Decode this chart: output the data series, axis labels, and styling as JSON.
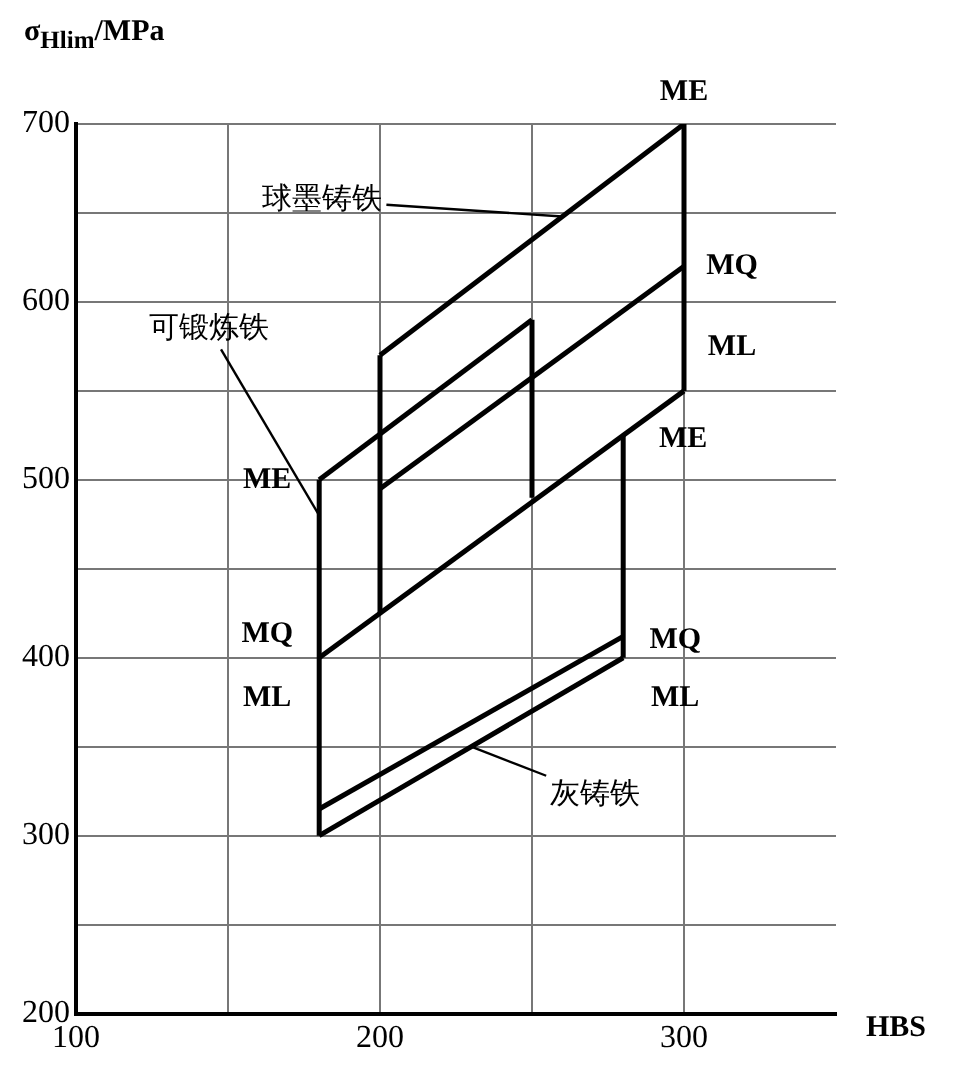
{
  "chart_data": {
    "type": "line",
    "xlabel": "HBS",
    "ylabel": "σ$_{Hlim}$/MPa",
    "xlim": [
      100,
      350
    ],
    "xticks": [
      100,
      {
        "value": 150,
        "label": null
      },
      200,
      {
        "value": 250,
        "label": null
      },
      300
    ],
    "ylim": [
      200,
      700
    ],
    "yticks": [
      200,
      {
        "value": 250,
        "label": null
      },
      300,
      {
        "value": 350,
        "label": null
      },
      400,
      {
        "value": 450,
        "label": null
      },
      500,
      {
        "value": 550,
        "label": null
      },
      600,
      {
        "value": 650,
        "label": null
      },
      700
    ],
    "grid": true,
    "legend": false,
    "marker": "none",
    "line_style": "solid",
    "series": [
      {
        "color": "#000000",
        "x": [
          180,
          280
        ],
        "values": [
          300,
          400
        ]
      },
      {
        "color": "#000000",
        "x": [
          180,
          280
        ],
        "values": [
          315,
          412
        ]
      },
      {
        "color": "#000000",
        "x": [
          180,
          180
        ],
        "values": [
          300,
          500
        ]
      },
      {
        "color": "#000000",
        "x": [
          280,
          280
        ],
        "values": [
          400,
          525
        ]
      },
      {
        "color": "#000000",
        "x": [
          180,
          250
        ],
        "values": [
          500,
          590
        ]
      },
      {
        "color": "#000000",
        "x": [
          250,
          250
        ],
        "values": [
          490,
          590
        ]
      },
      {
        "color": "#000000",
        "x": [
          200,
          300
        ],
        "values": [
          570,
          700
        ]
      },
      {
        "color": "#000000",
        "x": [
          200,
          300
        ],
        "values": [
          495,
          620
        ]
      },
      {
        "color": "#000000",
        "x": [
          180,
          300
        ],
        "values": [
          400,
          550
        ]
      },
      {
        "color": "#000000",
        "x": [
          300,
          300
        ],
        "values": [
          550,
          700
        ]
      },
      {
        "color": "#000000",
        "x": [
          200,
          200
        ],
        "values": [
          425,
          570
        ]
      }
    ],
    "annotations": [
      {
        "text": "ME",
        "x": 300,
        "y": 700
      },
      {
        "text": "MQ",
        "x": 300,
        "y": 620
      },
      {
        "text": "ML",
        "x": 300,
        "y": 550
      },
      {
        "text": "ME",
        "x": 280,
        "y": 525
      },
      {
        "text": "MQ",
        "x": 280,
        "y": 412
      },
      {
        "text": "ML",
        "x": 280,
        "y": 400
      },
      {
        "text": "ME",
        "x": 180,
        "y": 500
      },
      {
        "text": "MQ",
        "x": 180,
        "y": 400
      },
      {
        "text": "ML",
        "x": 180,
        "y": 400
      },
      {
        "text": "球墨铸铁",
        "x": 260,
        "y": 648
      },
      {
        "text": "可锻炼铁",
        "x": 180,
        "y": 480
      },
      {
        "text": "灰铸铁",
        "x": 230,
        "y": 350
      }
    ]
  }
}
